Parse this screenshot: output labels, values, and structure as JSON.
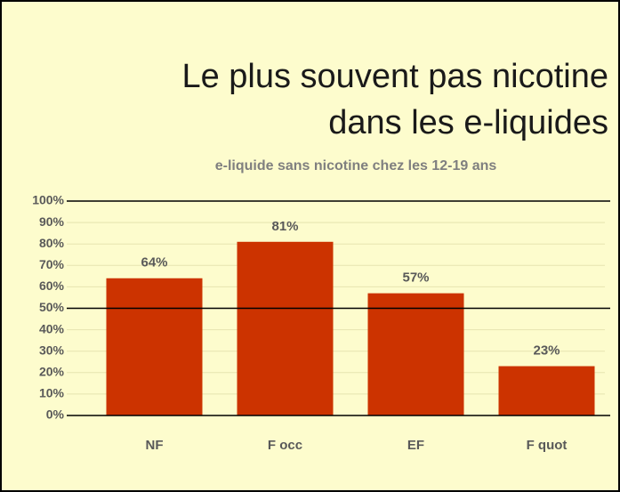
{
  "chart_data": {
    "type": "bar",
    "title_lines": [
      "Le plus souvent pas nicotine",
      "dans les e-liquides"
    ],
    "subtitle": "e-liquide sans nicotine chez les 12-19 ans",
    "categories": [
      "NF",
      "F occ",
      "EF",
      "F quot"
    ],
    "values": [
      64,
      81,
      57,
      23
    ],
    "value_labels": [
      "64%",
      "81%",
      "57%",
      "23%"
    ],
    "color": "#cc3300",
    "ylim": [
      0,
      100
    ],
    "yticks": [
      {
        "value": 0,
        "label": "0%"
      },
      {
        "value": 10,
        "label": "10%"
      },
      {
        "value": 20,
        "label": "20%"
      },
      {
        "value": 30,
        "label": "30%"
      },
      {
        "value": 40,
        "label": "40%"
      },
      {
        "value": 50,
        "label": "50%"
      },
      {
        "value": 60,
        "label": "60%"
      },
      {
        "value": 70,
        "label": "70%"
      },
      {
        "value": 80,
        "label": "80%"
      },
      {
        "value": 90,
        "label": "90%"
      },
      {
        "value": 100,
        "label": "100%"
      }
    ],
    "grid": true,
    "reference_lines": [
      0,
      50,
      100
    ]
  }
}
